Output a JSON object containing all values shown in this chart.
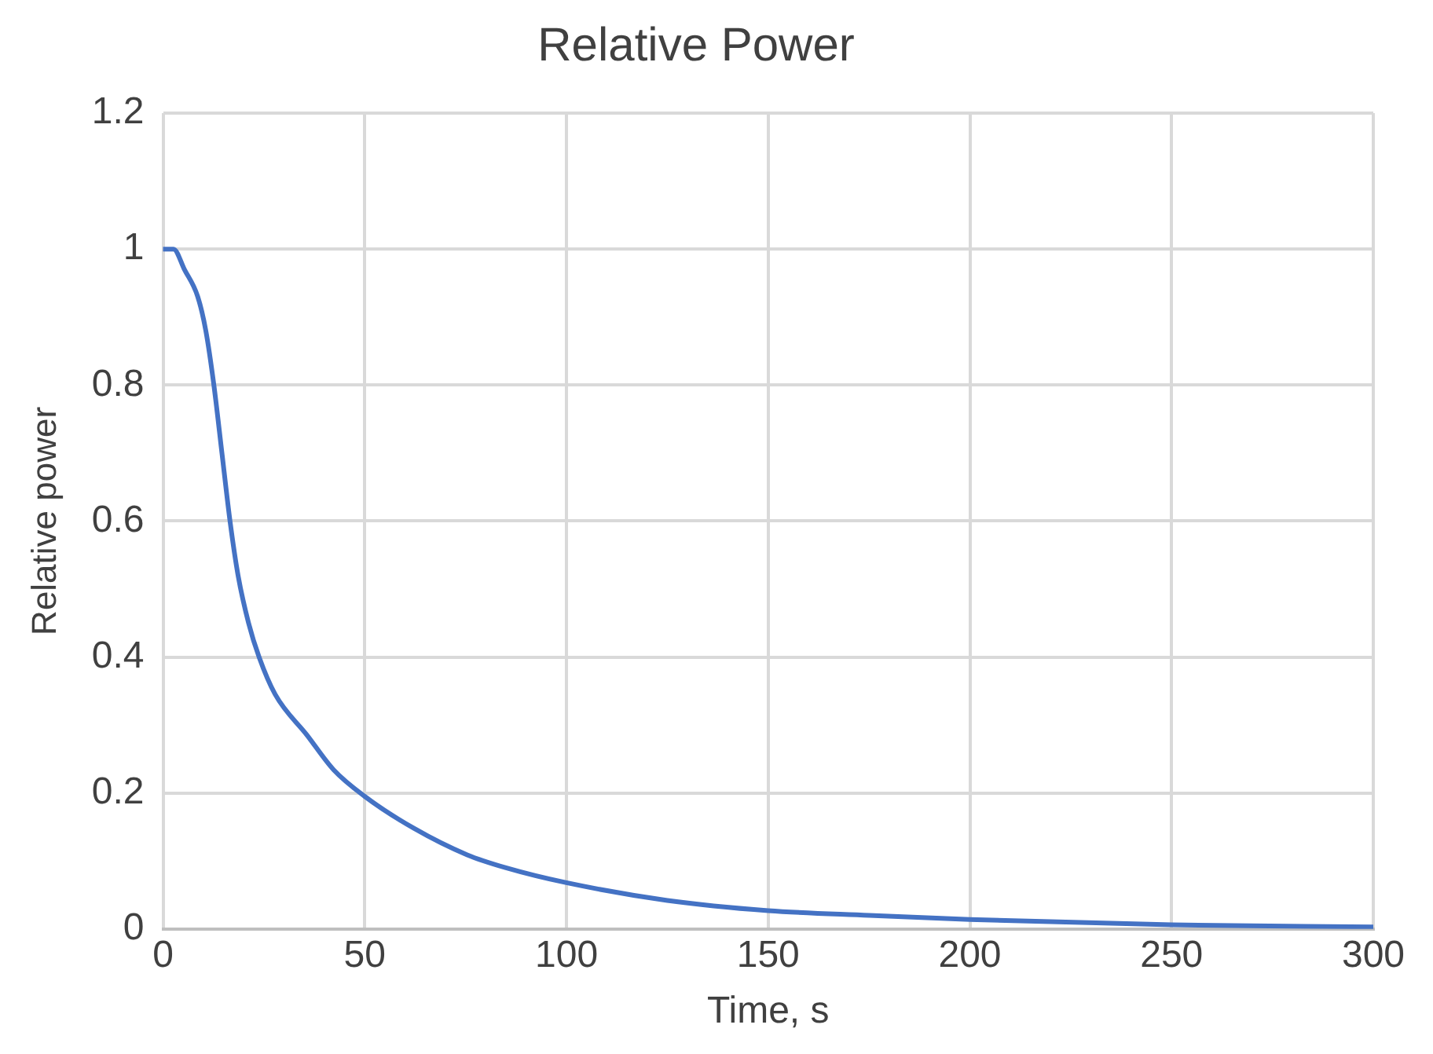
{
  "chart_data": {
    "type": "line",
    "title": "Relative Power",
    "xlabel": "Time, s",
    "ylabel": "Relative power",
    "x": [
      0,
      2.6,
      5.3,
      8.6,
      10.6,
      12.6,
      14.6,
      16.6,
      18.6,
      21.2,
      23.8,
      27.8,
      35.7,
      42.3,
      50,
      62.2,
      75.4,
      85,
      100,
      125,
      150,
      175,
      200,
      250,
      300
    ],
    "series": [
      {
        "color": "#4472c4",
        "values": [
          1,
          1,
          0.97,
          0.93,
          0.88,
          0.8,
          0.7,
          0.6,
          0.52,
          0.45,
          0.4,
          0.345,
          0.285,
          0.234,
          0.195,
          0.148,
          0.109,
          0.09,
          0.068,
          0.042,
          0.027,
          0.02,
          0.014,
          0.006,
          0.003
        ]
      }
    ],
    "xlim": [
      0,
      300
    ],
    "xticks": [
      0,
      50,
      100,
      150,
      200,
      250,
      300
    ],
    "ylim": [
      0,
      1.2
    ],
    "yticks": [
      0,
      0.2,
      0.4,
      0.6,
      0.8,
      1,
      1.2
    ],
    "grid": true,
    "legend": false,
    "marker": "none",
    "line_style": "solid"
  }
}
